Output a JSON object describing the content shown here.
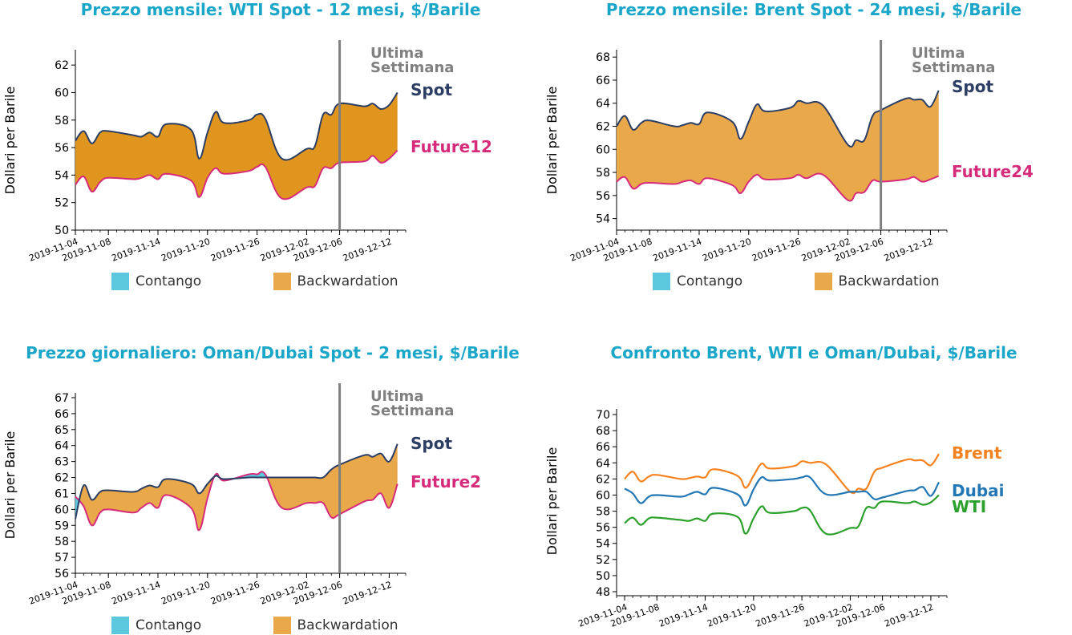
{
  "colors": {
    "title": "#1aa6c9",
    "spot": "#2c3e64",
    "future": "#d62b7a",
    "contango": "#5bc8de",
    "backwardation": "#e9a84a",
    "backwardation_dark": "#e0951e",
    "last_week": "#808080",
    "brent": "#f5821f",
    "dubai": "#2277b4",
    "wti": "#2ca02c"
  },
  "x_ticks": [
    "2019-11-04",
    "2019-11-08",
    "2019-11-14",
    "2019-11-20",
    "2019-11-26",
    "2019-12-02",
    "2019-12-06",
    "2019-12-12"
  ],
  "charts": {
    "wti": {
      "title": "Prezzo mensile: WTI Spot - 12 mesi, $/Barile",
      "ylabel": "Dollari per Barile",
      "spot_label": "Spot",
      "future_label": "Future12",
      "last_week_label_1": "Ultima",
      "last_week_label_2": "Settimana",
      "legend_contango": "Contango",
      "legend_backwardation": "Backwardation"
    },
    "brent": {
      "title": "Prezzo mensile: Brent Spot - 24 mesi, $/Barile",
      "ylabel": "Dollari per Barile",
      "spot_label": "Spot",
      "future_label": "Future24",
      "last_week_label_1": "Ultima",
      "last_week_label_2": "Settimana",
      "legend_contango": "Contango",
      "legend_backwardation": "Backwardation"
    },
    "dubai": {
      "title": "Prezzo giornaliero: Oman/Dubai Spot - 2 mesi, $/Barile",
      "ylabel": "Dollari per Barile",
      "spot_label": "Spot",
      "future_label": "Future2",
      "last_week_label_1": "Ultima",
      "last_week_label_2": "Settimana",
      "legend_contango": "Contango",
      "legend_backwardation": "Backwardation"
    },
    "compare": {
      "title": "Confronto Brent, WTI e Oman/Dubai, $/Barile",
      "ylabel": "Dollari per Barile",
      "brent_label": "Brent",
      "dubai_label": "Dubai",
      "wti_label": "WTI"
    }
  },
  "chart_data": [
    {
      "type": "area",
      "title": "Prezzo mensile: WTI Spot - 12 mesi, $/Barile",
      "ylabel": "Dollari per Barile",
      "ylim": [
        50,
        63
      ],
      "yticks": [
        50,
        52,
        54,
        56,
        58,
        60,
        62
      ],
      "x": [
        "2019-11-04",
        "2019-11-05",
        "2019-11-06",
        "2019-11-07",
        "2019-11-08",
        "2019-11-11",
        "2019-11-12",
        "2019-11-13",
        "2019-11-14",
        "2019-11-15",
        "2019-11-18",
        "2019-11-19",
        "2019-11-20",
        "2019-11-21",
        "2019-11-22",
        "2019-11-25",
        "2019-11-26",
        "2019-11-27",
        "2019-11-29",
        "2019-12-02",
        "2019-12-03",
        "2019-12-04",
        "2019-12-05",
        "2019-12-06",
        "2019-12-09",
        "2019-12-10",
        "2019-12-11",
        "2019-12-12",
        "2019-12-13"
      ],
      "series": [
        {
          "name": "Spot",
          "values": [
            56.5,
            57.2,
            56.3,
            57.1,
            57.2,
            56.9,
            56.8,
            57.1,
            56.8,
            57.7,
            57.3,
            55.2,
            57.1,
            58.6,
            57.8,
            58.0,
            58.4,
            58.1,
            55.2,
            55.9,
            56.1,
            58.4,
            58.4,
            59.2,
            59.0,
            59.2,
            58.8,
            59.1,
            60.0
          ]
        },
        {
          "name": "Future12",
          "values": [
            53.3,
            53.9,
            52.8,
            53.5,
            53.8,
            53.7,
            53.8,
            54.0,
            53.7,
            54.1,
            53.6,
            52.4,
            53.8,
            54.5,
            54.1,
            54.3,
            54.6,
            54.6,
            52.3,
            53.1,
            53.2,
            54.5,
            54.5,
            54.9,
            55.0,
            55.4,
            54.9,
            55.2,
            55.8
          ]
        }
      ],
      "last_week": "2019-12-06",
      "legend": [
        "Contango",
        "Backwardation"
      ]
    },
    {
      "type": "area",
      "title": "Prezzo mensile: Brent Spot - 24 mesi, $/Barile",
      "ylabel": "Dollari per Barile",
      "ylim": [
        53,
        68.5
      ],
      "yticks": [
        54,
        56,
        58,
        60,
        62,
        64,
        66,
        68
      ],
      "x": [
        "2019-11-04",
        "2019-11-05",
        "2019-11-06",
        "2019-11-07",
        "2019-11-08",
        "2019-11-11",
        "2019-11-12",
        "2019-11-13",
        "2019-11-14",
        "2019-11-15",
        "2019-11-18",
        "2019-11-19",
        "2019-11-20",
        "2019-11-21",
        "2019-11-22",
        "2019-11-25",
        "2019-11-26",
        "2019-11-27",
        "2019-11-29",
        "2019-12-02",
        "2019-12-03",
        "2019-12-04",
        "2019-12-05",
        "2019-12-06",
        "2019-12-09",
        "2019-12-10",
        "2019-12-11",
        "2019-12-12",
        "2019-12-13"
      ],
      "series": [
        {
          "name": "Spot",
          "values": [
            62.0,
            62.9,
            61.7,
            62.3,
            62.5,
            62.0,
            62.1,
            62.3,
            62.2,
            63.2,
            62.4,
            60.9,
            62.4,
            63.9,
            63.3,
            63.6,
            64.2,
            64.0,
            63.8,
            60.4,
            60.8,
            60.8,
            62.9,
            63.4,
            64.4,
            64.3,
            64.3,
            63.7,
            65.1
          ]
        },
        {
          "name": "Future24",
          "values": [
            57.2,
            57.6,
            56.6,
            57.0,
            57.1,
            57.0,
            57.2,
            57.3,
            57.0,
            57.5,
            56.9,
            56.2,
            57.2,
            57.8,
            57.4,
            57.5,
            57.8,
            57.5,
            57.8,
            55.6,
            56.2,
            56.3,
            57.3,
            57.2,
            57.4,
            57.6,
            57.2,
            57.4,
            57.7
          ]
        }
      ],
      "last_week": "2019-12-06",
      "legend": [
        "Contango",
        "Backwardation"
      ]
    },
    {
      "type": "area",
      "title": "Prezzo giornaliero: Oman/Dubai Spot - 2 mesi, $/Barile",
      "ylabel": "Dollari per Barile",
      "ylim": [
        56,
        67.2
      ],
      "yticks": [
        56,
        57,
        58,
        59,
        60,
        61,
        62,
        63,
        64,
        65,
        66,
        67
      ],
      "x": [
        "2019-11-04",
        "2019-11-05",
        "2019-11-06",
        "2019-11-07",
        "2019-11-08",
        "2019-11-11",
        "2019-11-12",
        "2019-11-13",
        "2019-11-14",
        "2019-11-15",
        "2019-11-18",
        "2019-11-19",
        "2019-11-20",
        "2019-11-21",
        "2019-11-22",
        "2019-11-25",
        "2019-11-26",
        "2019-11-27",
        "2019-11-29",
        "2019-12-02",
        "2019-12-03",
        "2019-12-04",
        "2019-12-05",
        "2019-12-06",
        "2019-12-09",
        "2019-12-10",
        "2019-12-11",
        "2019-12-12",
        "2019-12-13"
      ],
      "series": [
        {
          "name": "Spot",
          "values": [
            59.4,
            61.5,
            60.6,
            61.1,
            61.2,
            61.1,
            61.3,
            61.5,
            61.4,
            61.9,
            61.6,
            61.0,
            61.6,
            62.1,
            61.9,
            62.0,
            62.0,
            62.0,
            62.0,
            62.0,
            62.0,
            62.0,
            62.5,
            62.8,
            63.4,
            63.3,
            63.5,
            63.0,
            64.1
          ]
        },
        {
          "name": "Future2",
          "values": [
            60.8,
            60.2,
            59.0,
            59.8,
            60.0,
            59.8,
            60.1,
            60.4,
            60.1,
            60.9,
            60.1,
            58.7,
            60.7,
            62.2,
            61.8,
            62.2,
            62.2,
            62.2,
            60.1,
            60.4,
            60.4,
            60.4,
            59.5,
            59.7,
            60.5,
            60.6,
            61.0,
            60.1,
            61.6
          ]
        }
      ],
      "last_week": "2019-12-06",
      "legend": [
        "Contango",
        "Backwardation"
      ]
    },
    {
      "type": "line",
      "title": "Confronto Brent, WTI e Oman/Dubai, $/Barile",
      "ylabel": "Dollari per Barile",
      "ylim": [
        47.5,
        70.5
      ],
      "yticks": [
        48,
        50,
        52,
        54,
        56,
        58,
        60,
        62,
        64,
        66,
        68,
        70
      ],
      "x": [
        "2019-11-04",
        "2019-11-05",
        "2019-11-06",
        "2019-11-07",
        "2019-11-08",
        "2019-11-11",
        "2019-11-12",
        "2019-11-13",
        "2019-11-14",
        "2019-11-15",
        "2019-11-18",
        "2019-11-19",
        "2019-11-20",
        "2019-11-21",
        "2019-11-22",
        "2019-11-25",
        "2019-11-26",
        "2019-11-27",
        "2019-11-29",
        "2019-12-02",
        "2019-12-03",
        "2019-12-04",
        "2019-12-05",
        "2019-12-06",
        "2019-12-09",
        "2019-12-10",
        "2019-12-11",
        "2019-12-12",
        "2019-12-13"
      ],
      "series": [
        {
          "name": "Brent",
          "values": [
            62.0,
            62.9,
            61.7,
            62.3,
            62.5,
            62.0,
            62.1,
            62.3,
            62.2,
            63.2,
            62.4,
            60.9,
            62.4,
            63.9,
            63.3,
            63.6,
            64.2,
            64.0,
            63.8,
            60.4,
            60.8,
            60.8,
            62.9,
            63.4,
            64.4,
            64.3,
            64.3,
            63.7,
            65.1
          ]
        },
        {
          "name": "Dubai",
          "values": [
            60.8,
            60.2,
            59.0,
            59.8,
            60.0,
            59.8,
            60.1,
            60.4,
            60.1,
            60.9,
            60.1,
            58.7,
            60.7,
            62.2,
            61.8,
            62.0,
            62.2,
            62.2,
            60.1,
            60.4,
            60.4,
            60.4,
            59.5,
            59.7,
            60.5,
            60.6,
            61.0,
            59.9,
            61.6
          ]
        },
        {
          "name": "WTI",
          "values": [
            56.5,
            57.2,
            56.3,
            57.1,
            57.2,
            56.9,
            56.8,
            57.1,
            56.8,
            57.7,
            57.3,
            55.2,
            57.1,
            58.6,
            57.8,
            58.0,
            58.4,
            58.1,
            55.2,
            55.9,
            56.1,
            58.4,
            58.4,
            59.2,
            59.0,
            59.2,
            58.8,
            59.1,
            60.0
          ]
        }
      ]
    }
  ]
}
